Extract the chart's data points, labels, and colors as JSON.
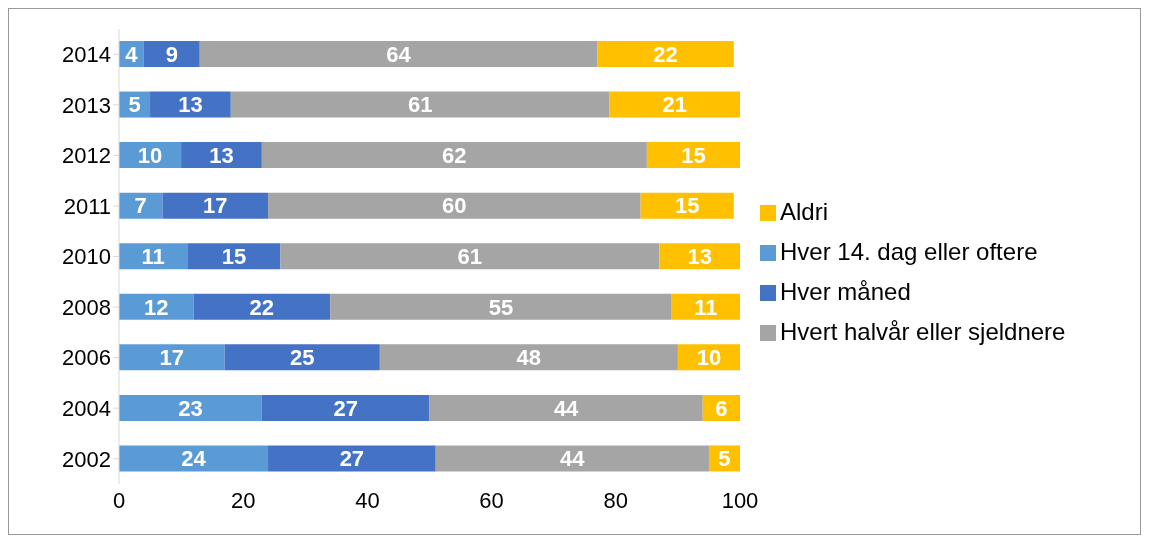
{
  "chart_data": {
    "type": "bar",
    "orientation": "horizontal",
    "stacked": true,
    "categories": [
      "2014",
      "2013",
      "2012",
      "2011",
      "2010",
      "2008",
      "2006",
      "2004",
      "2002"
    ],
    "series": [
      {
        "name": "Hver 14. dag eller oftere",
        "color": "#5b9bd5",
        "values": [
          4,
          5,
          10,
          7,
          11,
          12,
          17,
          23,
          24
        ]
      },
      {
        "name": "Hver måned",
        "color": "#4472c4",
        "values": [
          9,
          13,
          13,
          17,
          15,
          22,
          25,
          27,
          27
        ]
      },
      {
        "name": "Hvert halvår eller sjeldnere",
        "color": "#a5a5a5",
        "values": [
          64,
          61,
          62,
          60,
          61,
          55,
          48,
          44,
          44
        ]
      },
      {
        "name": "Aldri",
        "color": "#ffc000",
        "values": [
          22,
          21,
          15,
          15,
          13,
          11,
          10,
          6,
          5
        ]
      }
    ],
    "xlim": [
      0,
      100
    ],
    "xticks": [
      0,
      20,
      40,
      60,
      80,
      100
    ],
    "grid": false,
    "legend": "right",
    "data_labels": true
  }
}
